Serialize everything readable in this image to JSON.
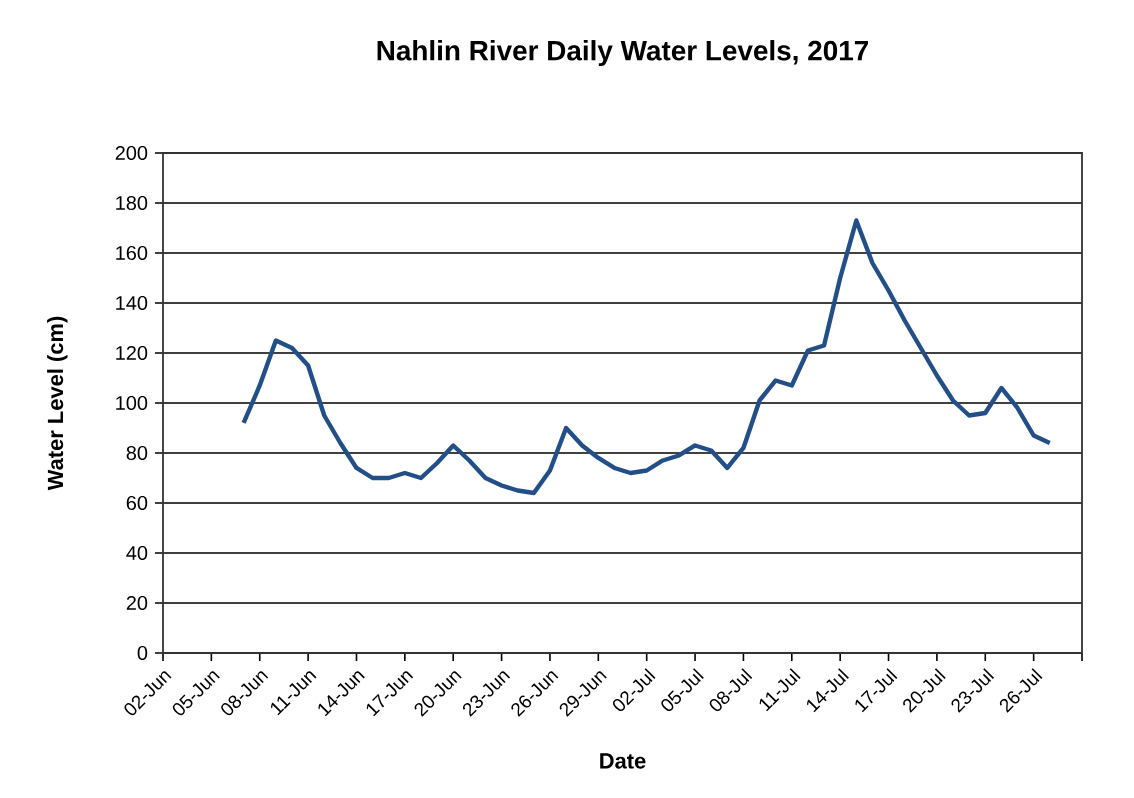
{
  "chart_data": {
    "type": "line",
    "title": "Nahlin River Daily Water Levels, 2017",
    "xlabel": "Date",
    "ylabel": "Water Level (cm)",
    "x": [
      "2017-06-07",
      "2017-06-08",
      "2017-06-09",
      "2017-06-10",
      "2017-06-11",
      "2017-06-12",
      "2017-06-13",
      "2017-06-14",
      "2017-06-15",
      "2017-06-16",
      "2017-06-17",
      "2017-06-18",
      "2017-06-19",
      "2017-06-20",
      "2017-06-21",
      "2017-06-22",
      "2017-06-23",
      "2017-06-24",
      "2017-06-25",
      "2017-06-26",
      "2017-06-27",
      "2017-06-28",
      "2017-06-29",
      "2017-06-30",
      "2017-07-01",
      "2017-07-02",
      "2017-07-03",
      "2017-07-04",
      "2017-07-05",
      "2017-07-06",
      "2017-07-07",
      "2017-07-08",
      "2017-07-09",
      "2017-07-10",
      "2017-07-11",
      "2017-07-12",
      "2017-07-13",
      "2017-07-14",
      "2017-07-15",
      "2017-07-16",
      "2017-07-17",
      "2017-07-18",
      "2017-07-19",
      "2017-07-20",
      "2017-07-21",
      "2017-07-22",
      "2017-07-23",
      "2017-07-24",
      "2017-07-25",
      "2017-07-26",
      "2017-07-27"
    ],
    "series": [
      {
        "color": "#234f89",
        "values": [
          92,
          107,
          125,
          122,
          115,
          95,
          84,
          74,
          70,
          70,
          72,
          70,
          76,
          83,
          77,
          70,
          67,
          65,
          64,
          73,
          90,
          83,
          78,
          74,
          72,
          73,
          77,
          79,
          83,
          81,
          74,
          82,
          101,
          109,
          107,
          121,
          123,
          150,
          173,
          156,
          145,
          133,
          122,
          111,
          101,
          95,
          96,
          106,
          98,
          87,
          84
        ]
      }
    ],
    "xlim": [
      "2017-06-02",
      "2017-07-29"
    ],
    "xticks": [
      {
        "value": "2017-06-02",
        "label": "02-Jun"
      },
      {
        "value": "2017-06-05",
        "label": "05-Jun"
      },
      {
        "value": "2017-06-08",
        "label": "08-Jun"
      },
      {
        "value": "2017-06-11",
        "label": "11-Jun"
      },
      {
        "value": "2017-06-14",
        "label": "14-Jun"
      },
      {
        "value": "2017-06-17",
        "label": "17-Jun"
      },
      {
        "value": "2017-06-20",
        "label": "20-Jun"
      },
      {
        "value": "2017-06-23",
        "label": "23-Jun"
      },
      {
        "value": "2017-06-26",
        "label": "26-Jun"
      },
      {
        "value": "2017-06-29",
        "label": "29-Jun"
      },
      {
        "value": "2017-07-02",
        "label": "02-Jul"
      },
      {
        "value": "2017-07-05",
        "label": "05-Jul"
      },
      {
        "value": "2017-07-08",
        "label": "08-Jul"
      },
      {
        "value": "2017-07-11",
        "label": "11-Jul"
      },
      {
        "value": "2017-07-14",
        "label": "14-Jul"
      },
      {
        "value": "2017-07-17",
        "label": "17-Jul"
      },
      {
        "value": "2017-07-20",
        "label": "20-Jul"
      },
      {
        "value": "2017-07-23",
        "label": "23-Jul"
      },
      {
        "value": "2017-07-26",
        "label": "26-Jul"
      },
      {
        "value": "2017-07-29",
        "label": null
      }
    ],
    "ylim": [
      0,
      200
    ],
    "yticks": [
      0,
      20,
      40,
      60,
      80,
      100,
      120,
      140,
      160,
      180,
      200
    ],
    "grid": "y",
    "line_style": "solid"
  }
}
